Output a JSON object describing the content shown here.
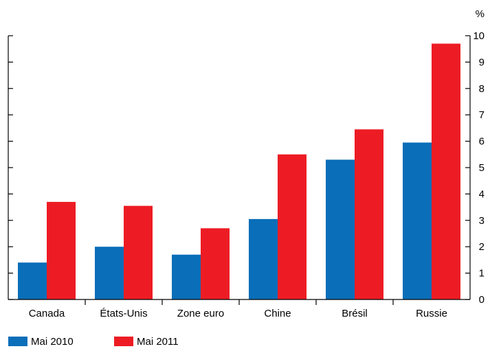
{
  "chart_data": {
    "type": "bar",
    "title": "",
    "xlabel": "",
    "ylabel": "%",
    "ylim": [
      0,
      10
    ],
    "yticks": [
      0,
      1,
      2,
      3,
      4,
      5,
      6,
      7,
      8,
      9,
      10
    ],
    "y_axis_side": "right",
    "grid": false,
    "legend_position": "bottom-left",
    "categories": [
      "Canada",
      "États-Unis",
      "Zone euro",
      "Chine",
      "Brésil",
      "Russie"
    ],
    "series": [
      {
        "name": "Mai 2010",
        "color": "#0a6eb9",
        "values": [
          1.4,
          2.0,
          1.7,
          3.05,
          5.3,
          5.95
        ]
      },
      {
        "name": "Mai 2011",
        "color": "#ed1c24",
        "values": [
          3.7,
          3.55,
          2.7,
          5.5,
          6.45,
          9.7
        ]
      }
    ]
  }
}
